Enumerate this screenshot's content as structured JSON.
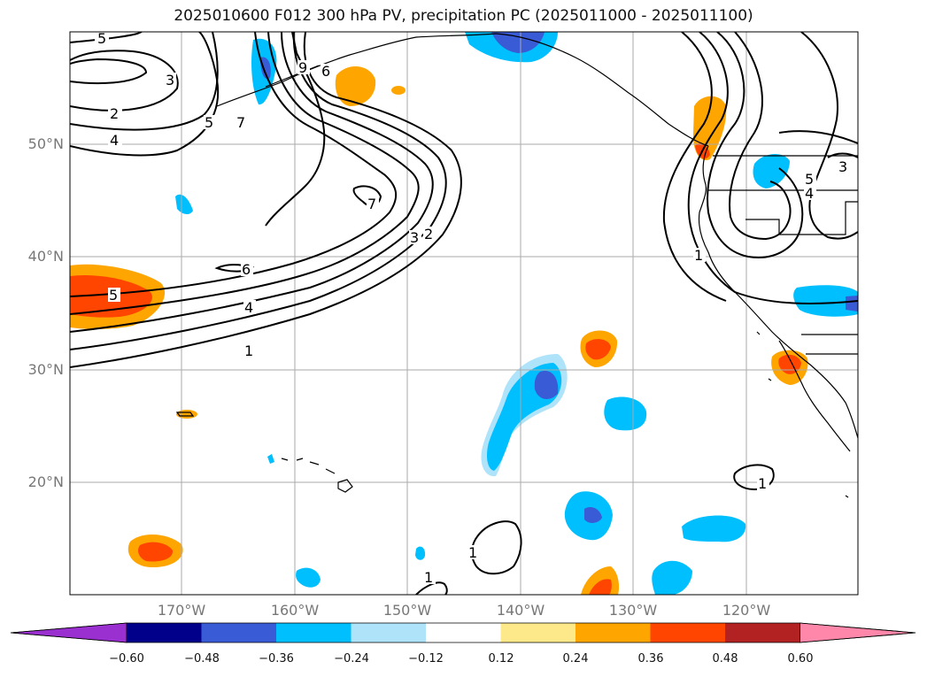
{
  "title": "2025010600 F012 300 hPa PV, precipitation PC (2025011000 - 2025011100)",
  "map": {
    "lon_labels": [
      "170°W",
      "160°W",
      "150°W",
      "140°W",
      "130°W",
      "120°W"
    ],
    "lat_labels": [
      "50°N",
      "40°N",
      "30°N",
      "20°N"
    ],
    "contour_labels": [
      "5",
      "3",
      "2",
      "4",
      "5",
      "7",
      "6",
      "9",
      "7",
      "3",
      "2",
      "6",
      "5",
      "4",
      "1",
      "1",
      "1",
      "1",
      "1",
      "3",
      "4",
      "5"
    ]
  },
  "colorbar": {
    "tick_labels": [
      "−0.60",
      "−0.48",
      "−0.36",
      "−0.24",
      "−0.12",
      "0.12",
      "0.24",
      "0.36",
      "0.48",
      "0.60"
    ],
    "colors": [
      "#9b30d0",
      "#00008b",
      "#3a5bd6",
      "#00bfff",
      "#aee3fa",
      "#ffffff",
      "#fde98a",
      "#ffa500",
      "#ff4500",
      "#b22222",
      "#ff88aa"
    ]
  }
}
